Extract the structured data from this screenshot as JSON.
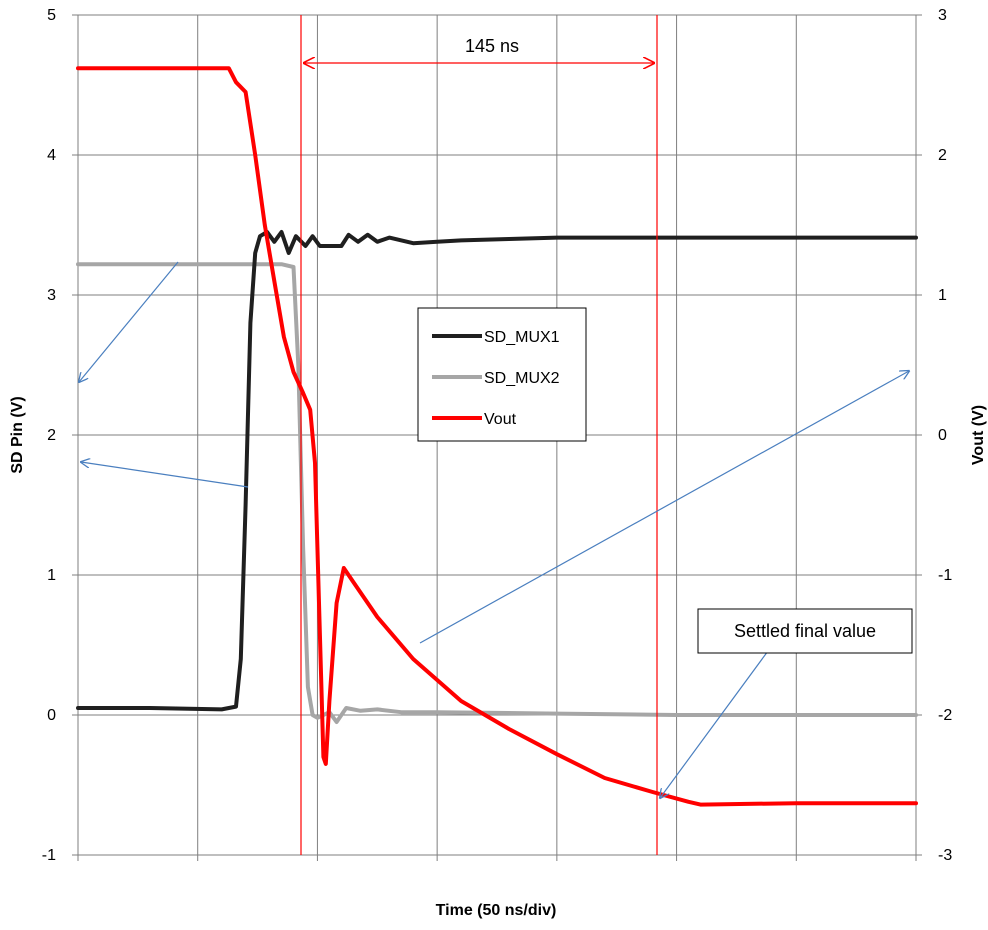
{
  "chart_data": {
    "type": "line",
    "xlabel": "Time (50 ns/div)",
    "ylabel_left": "SD Pin (V)",
    "ylabel_right": "Vout (V)",
    "ylim_left": [
      -1,
      5
    ],
    "ylim_right": [
      -3,
      3
    ],
    "xlim_ns": [
      0,
      350
    ],
    "yticks_left": [
      "5",
      "4",
      "3",
      "2",
      "1",
      "0",
      "-1"
    ],
    "yticks_right": [
      "3",
      "2",
      "1",
      "0",
      "-1",
      "-2",
      "-3"
    ],
    "grid": true,
    "legend_position": "center",
    "colors": {
      "SD_MUX1": "#1f1f1f",
      "SD_MUX2": "#a6a6a6",
      "Vout": "#ff0000",
      "marker": "#ff0000",
      "arrow": "#4a7fbf"
    },
    "series": [
      {
        "name": "SD_MUX1",
        "axis": "left",
        "points": [
          [
            0,
            0.05
          ],
          [
            30,
            0.05
          ],
          [
            60,
            0.04
          ],
          [
            66,
            0.06
          ],
          [
            68,
            0.4
          ],
          [
            70,
            1.5
          ],
          [
            72,
            2.8
          ],
          [
            74,
            3.3
          ],
          [
            76,
            3.42
          ],
          [
            79,
            3.45
          ],
          [
            82,
            3.38
          ],
          [
            85,
            3.45
          ],
          [
            88,
            3.3
          ],
          [
            91,
            3.42
          ],
          [
            95,
            3.35
          ],
          [
            98,
            3.42
          ],
          [
            101,
            3.35
          ],
          [
            110,
            3.35
          ],
          [
            113,
            3.43
          ],
          [
            117,
            3.38
          ],
          [
            121,
            3.43
          ],
          [
            125,
            3.38
          ],
          [
            130,
            3.41
          ],
          [
            140,
            3.37
          ],
          [
            150,
            3.38
          ],
          [
            160,
            3.39
          ],
          [
            180,
            3.4
          ],
          [
            200,
            3.41
          ],
          [
            250,
            3.41
          ],
          [
            300,
            3.41
          ],
          [
            350,
            3.41
          ]
        ]
      },
      {
        "name": "SD_MUX2",
        "axis": "left",
        "points": [
          [
            0,
            3.22
          ],
          [
            50,
            3.22
          ],
          [
            85,
            3.22
          ],
          [
            90,
            3.2
          ],
          [
            92,
            2.5
          ],
          [
            94,
            1.2
          ],
          [
            96,
            0.2
          ],
          [
            98,
            0.0
          ],
          [
            100,
            -0.02
          ],
          [
            105,
            0.02
          ],
          [
            108,
            -0.05
          ],
          [
            112,
            0.05
          ],
          [
            118,
            0.03
          ],
          [
            125,
            0.04
          ],
          [
            135,
            0.02
          ],
          [
            150,
            0.02
          ],
          [
            200,
            0.01
          ],
          [
            250,
            0.0
          ],
          [
            300,
            0.0
          ],
          [
            350,
            0.0
          ]
        ]
      },
      {
        "name": "Vout",
        "axis": "right",
        "points": [
          [
            0,
            2.62
          ],
          [
            50,
            2.62
          ],
          [
            63,
            2.62
          ],
          [
            66,
            2.52
          ],
          [
            70,
            2.45
          ],
          [
            74,
            2.0
          ],
          [
            78,
            1.5
          ],
          [
            82,
            1.1
          ],
          [
            86,
            0.7
          ],
          [
            90,
            0.45
          ],
          [
            94,
            0.3
          ],
          [
            97,
            0.18
          ],
          [
            99,
            -0.2
          ],
          [
            100,
            -0.8
          ],
          [
            101.5,
            -1.7
          ],
          [
            102.5,
            -2.3
          ],
          [
            103.5,
            -2.35
          ],
          [
            105,
            -1.9
          ],
          [
            108,
            -1.2
          ],
          [
            111,
            -0.95
          ],
          [
            115,
            -1.05
          ],
          [
            125,
            -1.3
          ],
          [
            140,
            -1.6
          ],
          [
            160,
            -1.9
          ],
          [
            180,
            -2.1
          ],
          [
            200,
            -2.28
          ],
          [
            220,
            -2.45
          ],
          [
            240,
            -2.55
          ],
          [
            255,
            -2.62
          ],
          [
            260,
            -2.64
          ],
          [
            300,
            -2.63
          ],
          [
            350,
            -2.63
          ]
        ]
      }
    ],
    "annotations": {
      "interval_label": "145 ns",
      "callout_label": "Settled final value"
    }
  }
}
